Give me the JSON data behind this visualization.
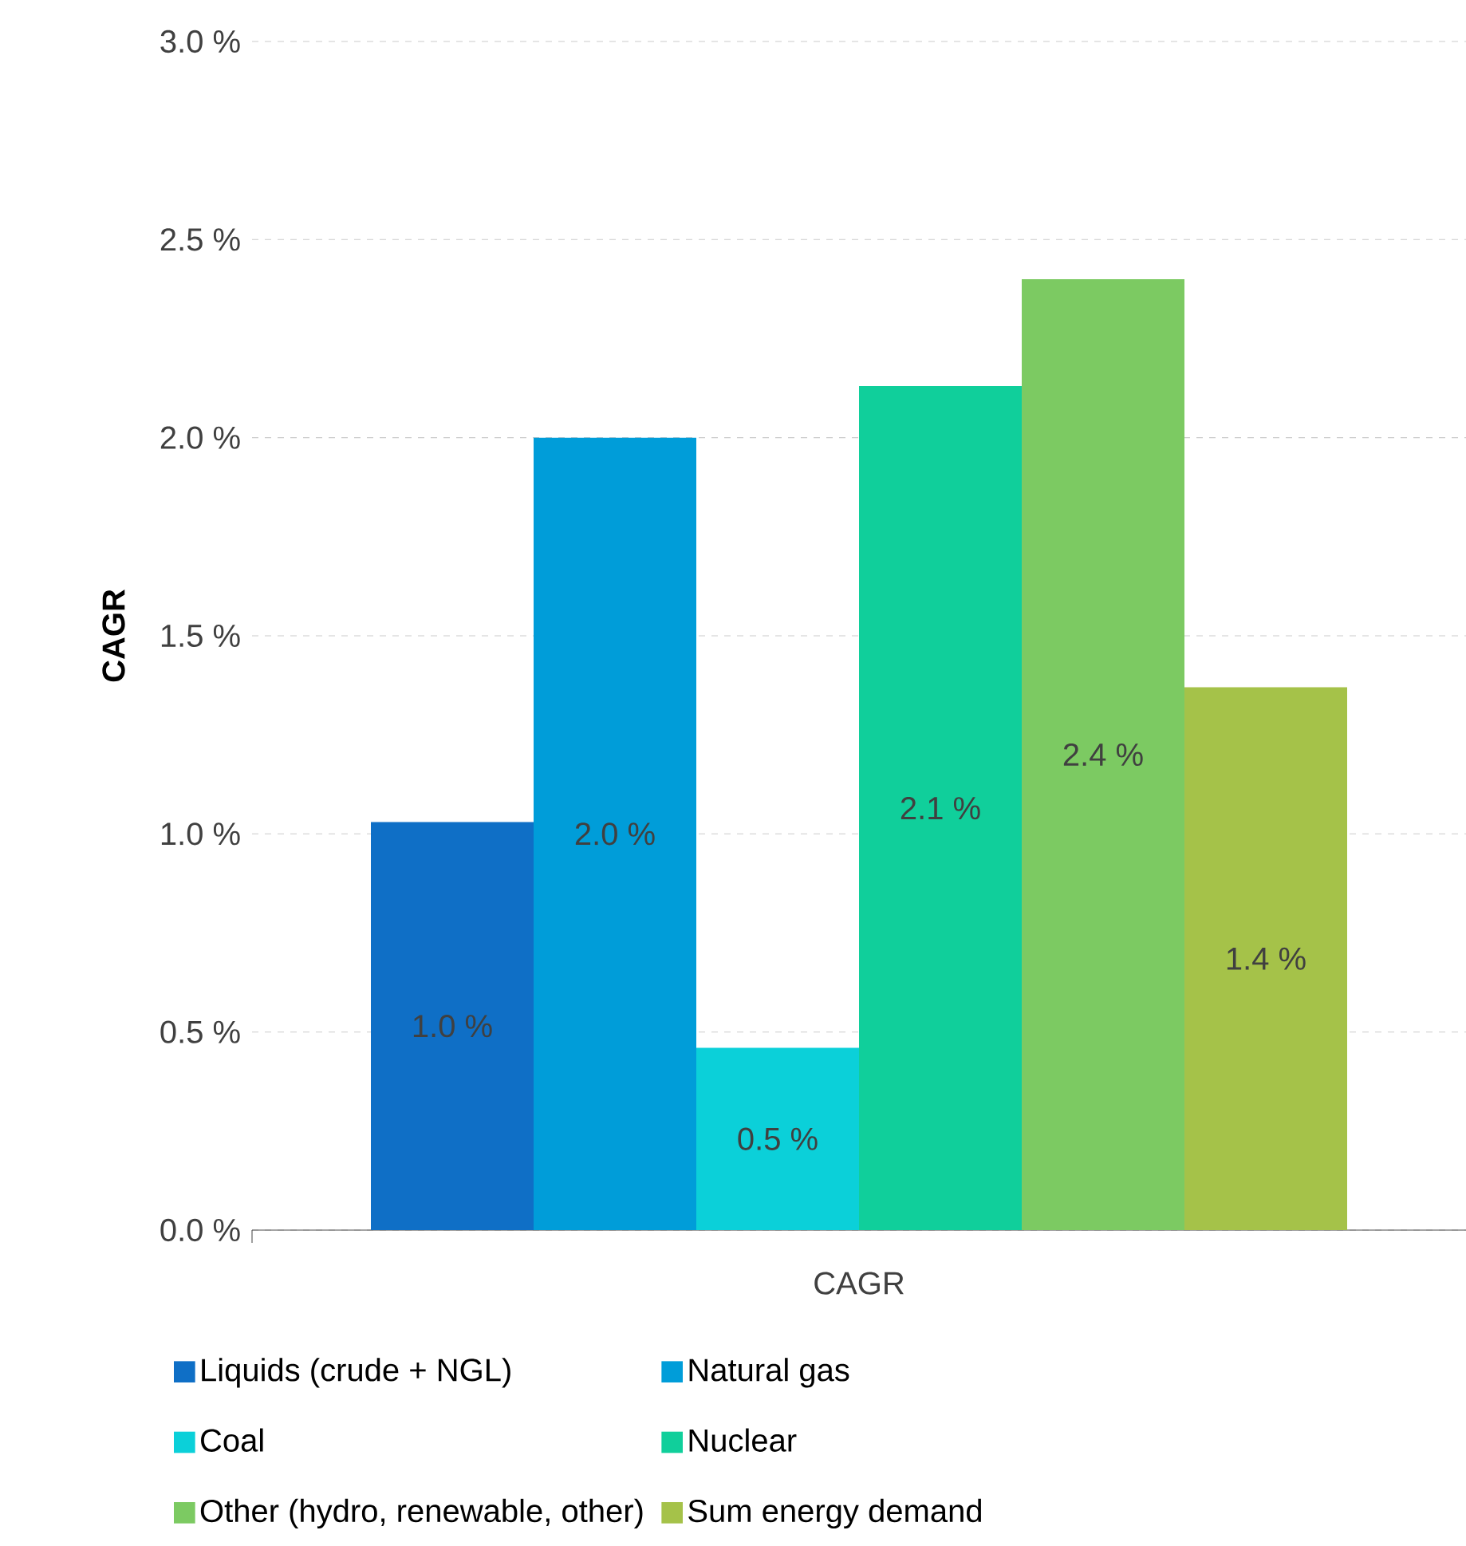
{
  "chart_data": {
    "type": "bar",
    "ylabel": "CAGR",
    "xlabel": "CAGR",
    "categories": [
      null
    ],
    "series": [
      {
        "name": "Liquids (crude + NGL)",
        "color": "#0f6fc6",
        "values": [
          1.03
        ],
        "value_labels": [
          "1.0 %"
        ]
      },
      {
        "name": "Natural gas",
        "color": "#009dd9",
        "values": [
          2.0
        ],
        "value_labels": [
          "2.0 %"
        ]
      },
      {
        "name": "Coal",
        "color": "#0bd0d9",
        "values": [
          0.46
        ],
        "value_labels": [
          "0.5 %"
        ]
      },
      {
        "name": "Nuclear",
        "color": "#10cf9b",
        "values": [
          2.13
        ],
        "value_labels": [
          "2.1 %"
        ]
      },
      {
        "name": "Other (hydro, renewable, other)",
        "color": "#7cca62",
        "values": [
          2.4
        ],
        "value_labels": [
          "2.4 %"
        ]
      },
      {
        "name": "Sum energy demand",
        "color": "#a5c249",
        "values": [
          1.37
        ],
        "value_labels": [
          "1.4 %"
        ]
      }
    ],
    "ylim": [
      0,
      3
    ],
    "yticks": [
      {
        "value": 0,
        "label": "0.0 %"
      },
      {
        "value": 0.5,
        "label": "0.5 %"
      },
      {
        "value": 1,
        "label": "1.0 %"
      },
      {
        "value": 1.5,
        "label": "1.5 %"
      },
      {
        "value": 2,
        "label": "2.0 %"
      },
      {
        "value": 2.5,
        "label": "2.5 %"
      },
      {
        "value": 3,
        "label": "3.0 %"
      }
    ],
    "grid": "y",
    "legend": "bottom"
  }
}
